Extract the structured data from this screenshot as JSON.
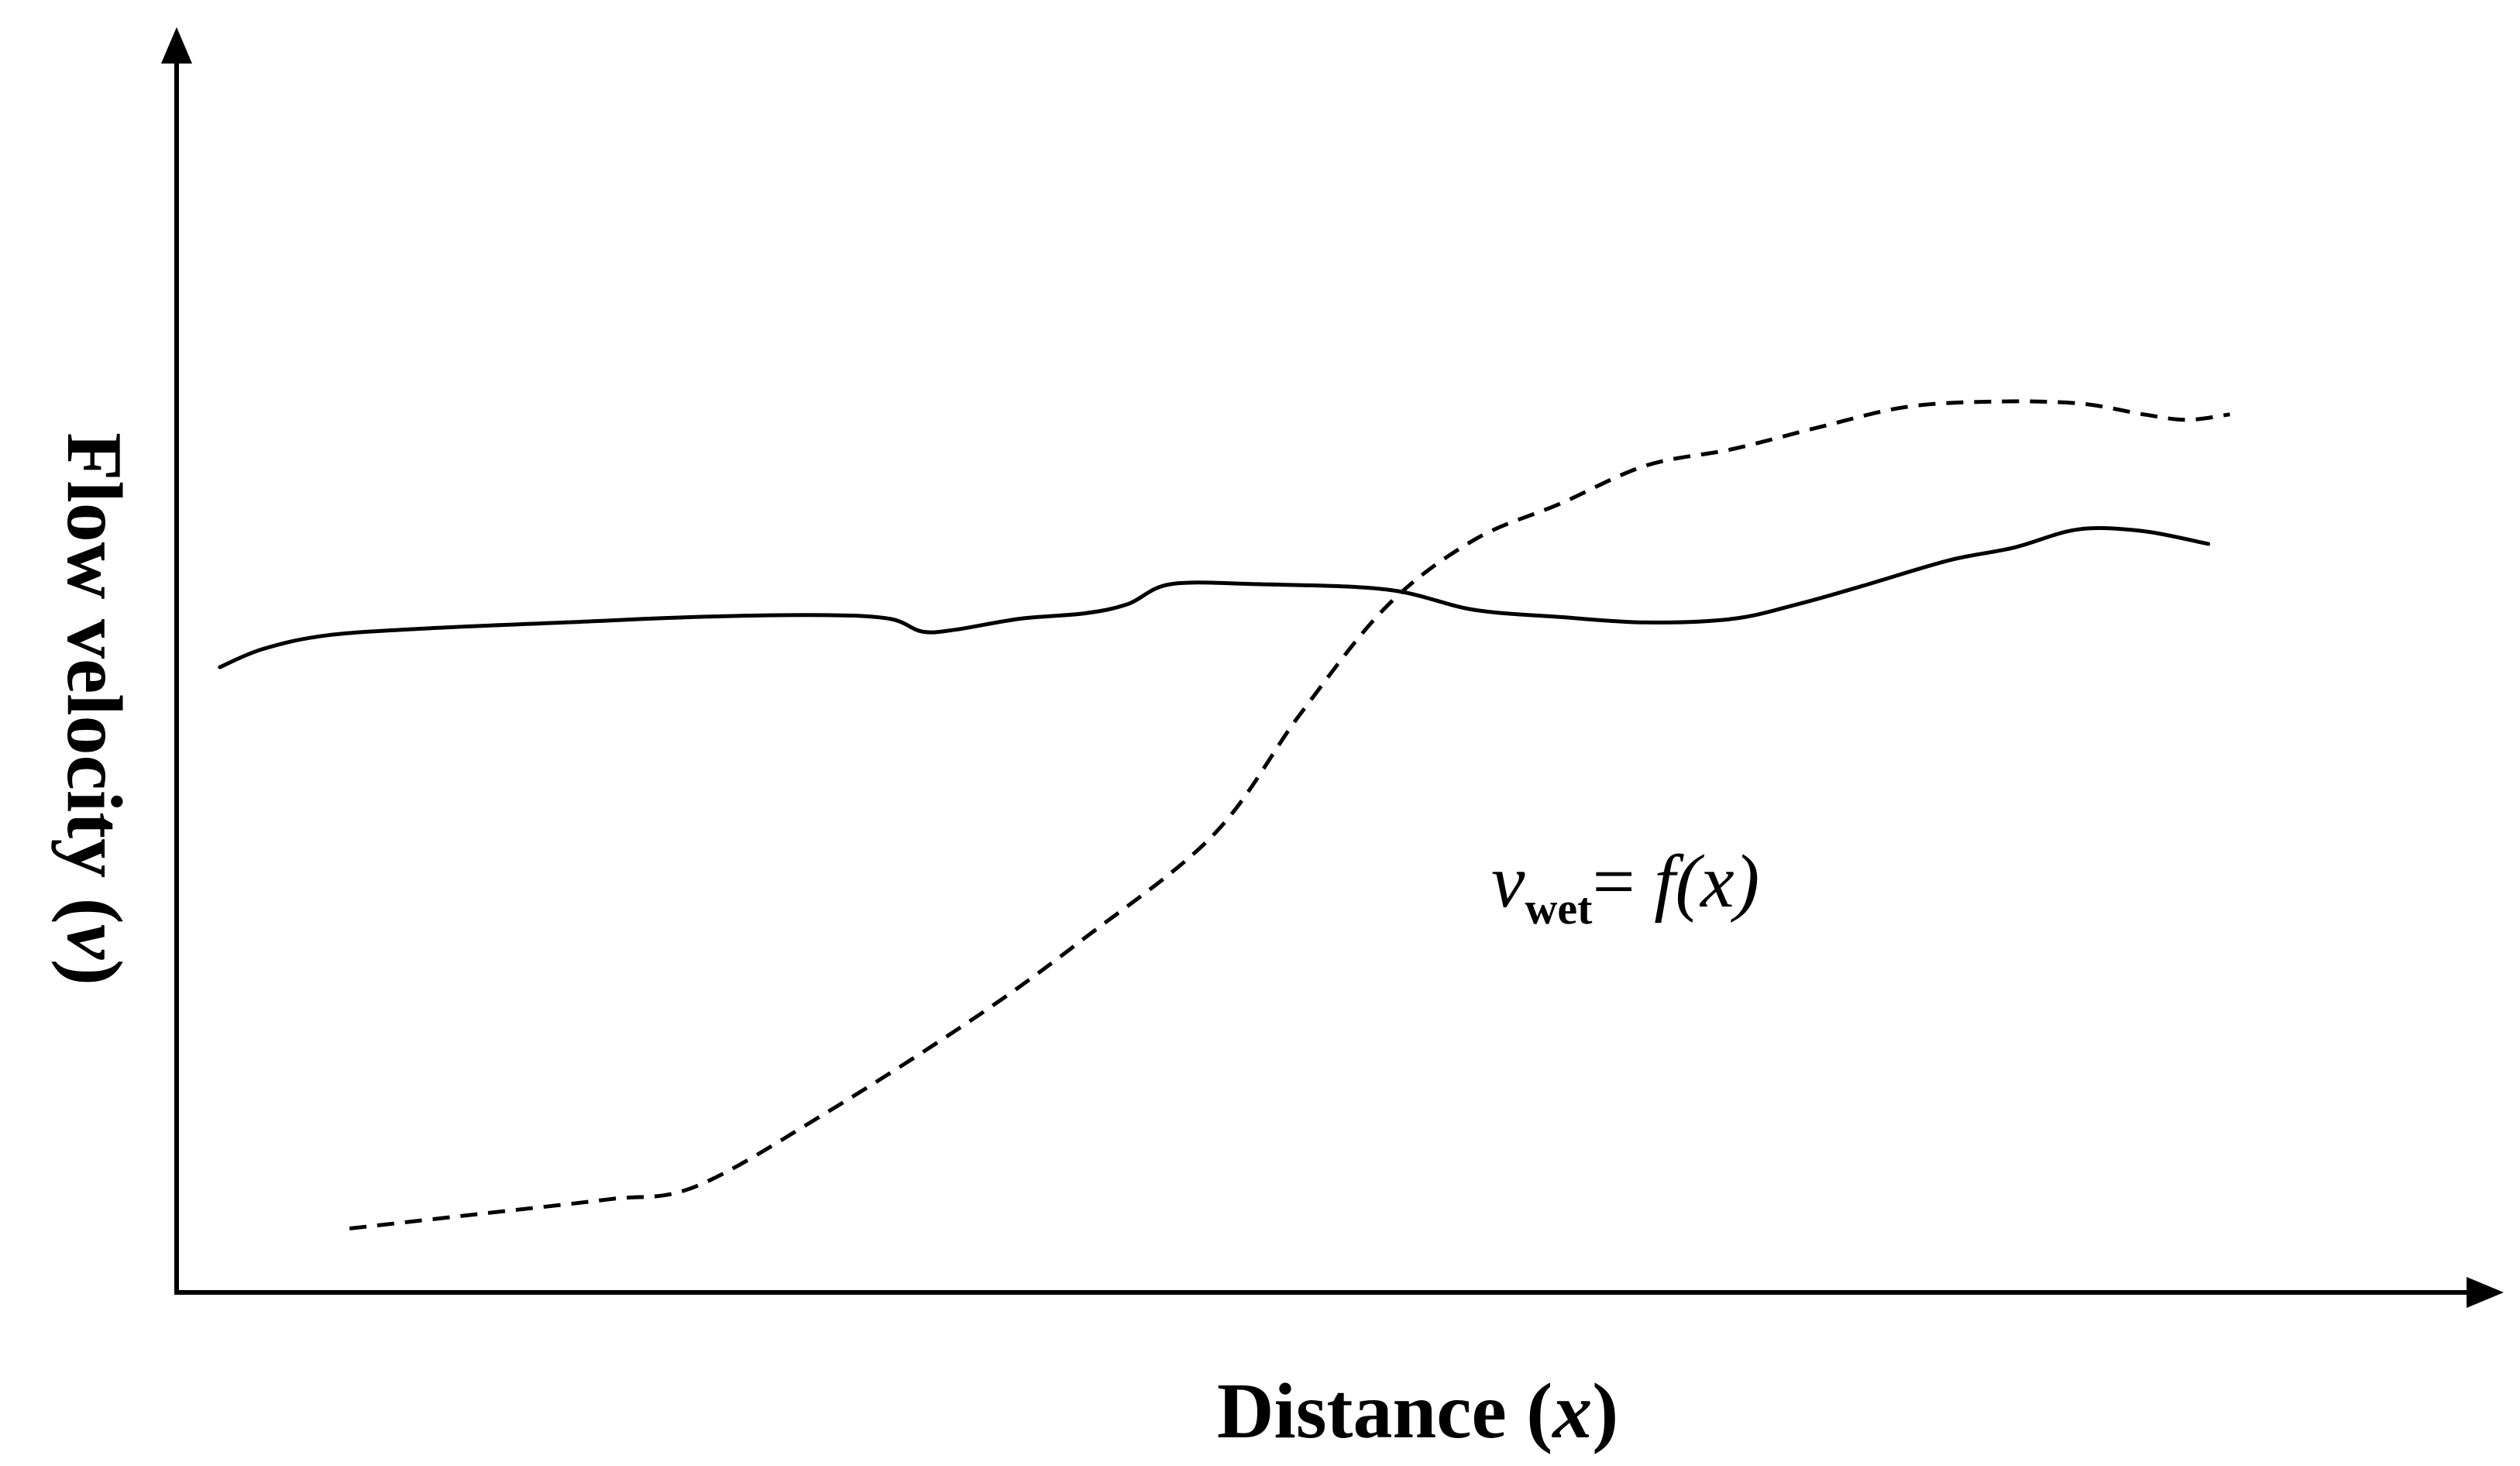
{
  "chart_data": {
    "type": "line",
    "title": "",
    "xlabel": {
      "text": "Distance",
      "symbol": "x"
    },
    "ylabel": {
      "text": "Flow velocity",
      "symbol": "v"
    },
    "xlim": [
      0,
      100
    ],
    "ylim": [
      0,
      100
    ],
    "ticks": "none",
    "grid": false,
    "legend": "none",
    "annotation": {
      "var": "v",
      "sub": "wet",
      "eq": "= ",
      "func": "f(x)"
    },
    "series": [
      {
        "style": "solid",
        "x": [
          2,
          4,
          7,
          12,
          18,
          24,
          30,
          33,
          34.5,
          36,
          39,
          42,
          44,
          46,
          50,
          56,
          60,
          64,
          68,
          72,
          75,
          78,
          82,
          85,
          88,
          91,
          94
        ],
        "y": [
          68.5,
          70.5,
          72,
          72.8,
          73.4,
          74,
          74.2,
          73.8,
          72.4,
          72.6,
          73.8,
          74.4,
          75.4,
          77.6,
          77.6,
          77,
          74.8,
          74,
          73.4,
          73.8,
          75.4,
          77.4,
          80.2,
          81.6,
          83.6,
          83.4,
          82
        ]
      },
      {
        "style": "dashed",
        "x": [
          8,
          14,
          20,
          24,
          30,
          37,
          42,
          48,
          52,
          56,
          60,
          64,
          68,
          72,
          76,
          80,
          84,
          88,
          91,
          93,
          95
        ],
        "y": [
          7,
          8.6,
          10.2,
          11.6,
          19.6,
          30.2,
          38.8,
          50.2,
          63.4,
          75.2,
          82.4,
          86.4,
          90.6,
          92.4,
          94.8,
          97,
          97.6,
          97.4,
          96.2,
          95.6,
          96.2
        ]
      }
    ]
  }
}
